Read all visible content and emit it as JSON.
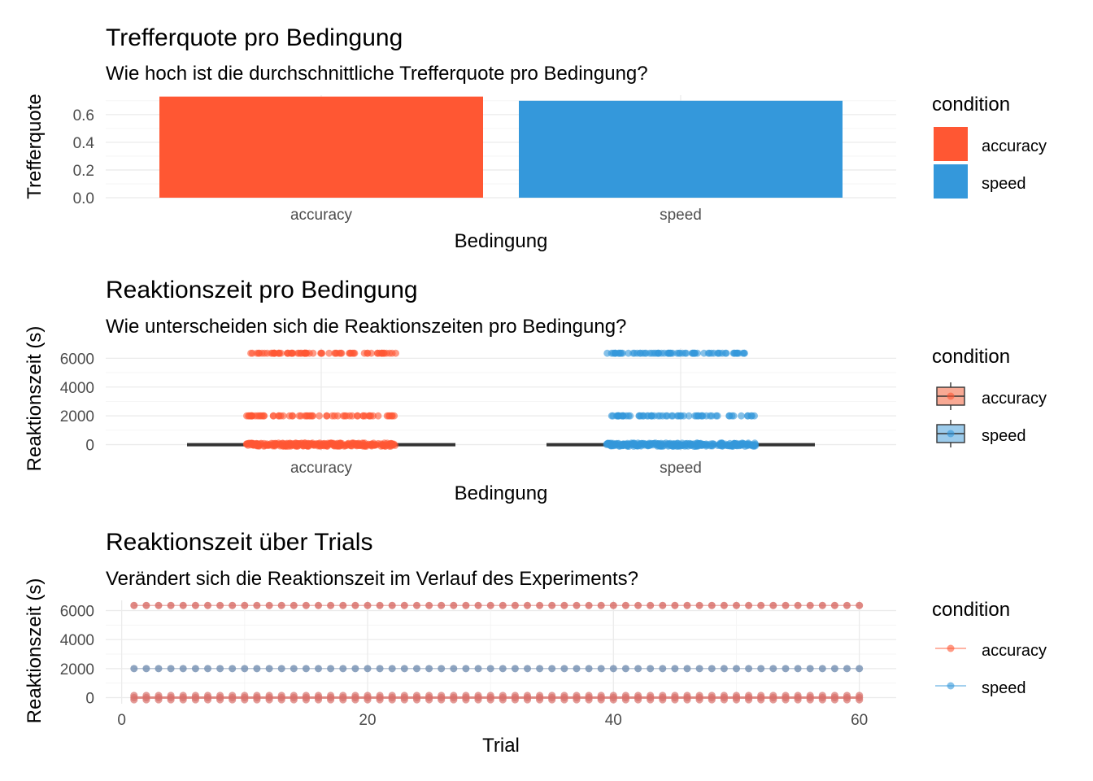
{
  "colors": {
    "accuracy": "#ff5733",
    "speed": "#3498db",
    "accuracy_line": "#d9726c",
    "speed_line": "#7a94b5",
    "box": "#333333"
  },
  "chart_data": [
    {
      "type": "bar",
      "title": "Trefferquote pro Bedingung",
      "subtitle": "Wie hoch ist die durchschnittliche Trefferquote pro Bedingung?",
      "xlabel": "Bedingung",
      "ylabel": "Trefferquote",
      "categories": [
        "accuracy",
        "speed"
      ],
      "values": [
        0.73,
        0.7
      ],
      "ylim": [
        0,
        0.74
      ],
      "yticks": [
        0.0,
        0.2,
        0.4,
        0.6
      ],
      "ytick_labels": [
        "0.0",
        "0.2",
        "0.4",
        "0.6"
      ],
      "legend": {
        "title": "condition",
        "entries": [
          "accuracy",
          "speed"
        ],
        "position": "right"
      },
      "grid": true
    },
    {
      "type": "scatter",
      "title": "Reaktionszeit pro Bedingung",
      "subtitle": "Wie unterscheiden sich die Reaktionszeiten pro Bedingung?",
      "xlabel": "Bedingung",
      "ylabel": "Reaktionszeit (s)",
      "categories": [
        "accuracy",
        "speed"
      ],
      "ylim": [
        -420,
        6700
      ],
      "yticks": [
        0,
        2000,
        4000,
        6000
      ],
      "ytick_labels": [
        "0",
        "2000",
        "4000",
        "6000"
      ],
      "boxplot_median": [
        0,
        0
      ],
      "point_levels": [
        6350,
        2000,
        0
      ],
      "legend": {
        "title": "condition",
        "entries": [
          "accuracy",
          "speed"
        ],
        "position": "right"
      },
      "grid": true
    },
    {
      "type": "line",
      "title": "Reaktionszeit über Trials",
      "subtitle": "Verändert sich die Reaktionszeit im Verlauf des Experiments?",
      "xlabel": "Trial",
      "ylabel": "Reaktionszeit (s)",
      "xlim": [
        -1.3,
        63
      ],
      "ylim": [
        -420,
        6700
      ],
      "xticks": [
        0,
        20,
        40,
        60
      ],
      "xtick_labels": [
        "0",
        "20",
        "40",
        "60"
      ],
      "yticks": [
        0,
        2000,
        4000,
        6000
      ],
      "ytick_labels": [
        "0",
        "2000",
        "4000",
        "6000"
      ],
      "trial_range": [
        1,
        60
      ],
      "series": [
        {
          "name": "accuracy",
          "levels": [
            6350,
            0
          ]
        },
        {
          "name": "speed",
          "levels": [
            2000,
            0
          ]
        }
      ],
      "legend": {
        "title": "condition",
        "entries": [
          "accuracy",
          "speed"
        ],
        "position": "right"
      },
      "grid": true
    }
  ]
}
